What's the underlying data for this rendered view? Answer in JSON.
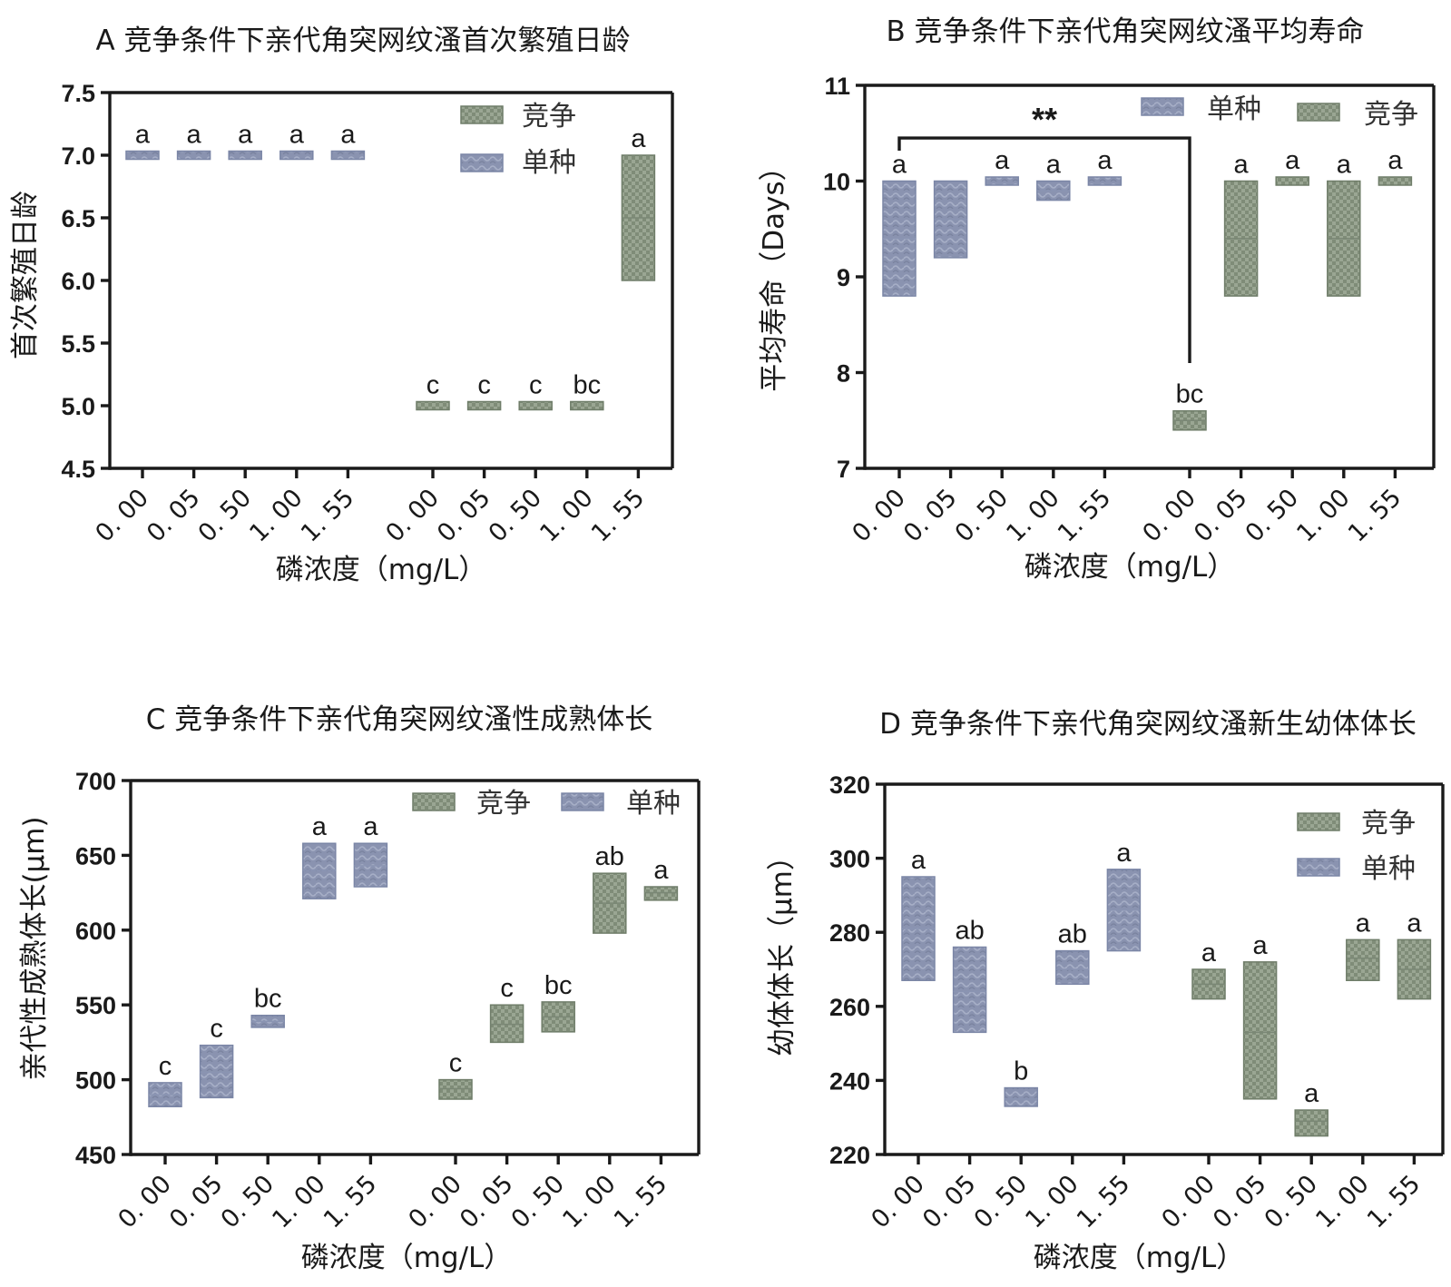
{
  "colors": {
    "competition": "#7f8c78",
    "competition_dark": "#65725f",
    "single": "#8a93b0",
    "single_dark": "#6e7896",
    "axis": "#1a1a1a"
  },
  "chart_data": [
    {
      "id": "A",
      "type": "floating-bar",
      "title": "A 竞争条件下亲代角突网纹溞首次繁殖日龄",
      "xlabel": "磷浓度（mg/L）",
      "ylabel": "首次繁殖日龄",
      "ylim": [
        4.5,
        7.5
      ],
      "yticks": [
        4.5,
        5.0,
        5.5,
        6.0,
        6.5,
        7.0,
        7.5
      ],
      "ytick_labels": [
        "4.5",
        "5.0",
        "5.5",
        "6.0",
        "6.5",
        "7.0",
        "7.5"
      ],
      "categories": [
        "0. 00",
        "0. 05",
        "0. 50",
        "1. 00",
        "1. 55",
        "0. 00",
        "0. 05",
        "0. 50",
        "1. 00",
        "1. 55"
      ],
      "legend": [
        {
          "series": "competition",
          "label": "竞争"
        },
        {
          "series": "single",
          "label": "单种"
        }
      ],
      "bars": [
        {
          "series": "single",
          "min": 7.0,
          "max": 7.0,
          "mean": 7.0,
          "letter": "a"
        },
        {
          "series": "single",
          "min": 7.0,
          "max": 7.0,
          "mean": 7.0,
          "letter": "a"
        },
        {
          "series": "single",
          "min": 7.0,
          "max": 7.0,
          "mean": 7.0,
          "letter": "a"
        },
        {
          "series": "single",
          "min": 7.0,
          "max": 7.0,
          "mean": 7.0,
          "letter": "a"
        },
        {
          "series": "single",
          "min": 7.0,
          "max": 7.0,
          "mean": 7.0,
          "letter": "a"
        },
        {
          "series": "competition",
          "min": 5.0,
          "max": 5.0,
          "mean": 5.0,
          "letter": "c"
        },
        {
          "series": "competition",
          "min": 5.0,
          "max": 5.0,
          "mean": 5.0,
          "letter": "c"
        },
        {
          "series": "competition",
          "min": 5.0,
          "max": 5.0,
          "mean": 5.0,
          "letter": "c"
        },
        {
          "series": "competition",
          "min": 5.0,
          "max": 5.0,
          "mean": 5.0,
          "letter": "bc"
        },
        {
          "series": "competition",
          "min": 6.0,
          "max": 7.0,
          "mean": 6.5,
          "letter": "a"
        }
      ]
    },
    {
      "id": "B",
      "type": "floating-bar",
      "title": "B 竞争条件下亲代角突网纹溞平均寿命",
      "xlabel": "磷浓度（mg/L）",
      "ylabel": "平均寿命（Days）",
      "ylim": [
        7,
        11
      ],
      "yticks": [
        7,
        8,
        9,
        10,
        11
      ],
      "ytick_labels": [
        "7",
        "8",
        "9",
        "10",
        "11"
      ],
      "categories": [
        "0. 00",
        "0. 05",
        "0. 50",
        "1. 00",
        "1. 55",
        "0. 00",
        "0. 05",
        "0. 50",
        "1. 00",
        "1. 55"
      ],
      "legend": [
        {
          "series": "single",
          "label": "单种"
        },
        {
          "series": "competition",
          "label": "竞争"
        }
      ],
      "bars": [
        {
          "series": "single",
          "min": 8.8,
          "max": 10.0,
          "mean": 9.4,
          "letter": "a"
        },
        {
          "series": "single",
          "min": 9.2,
          "max": 10.0,
          "mean": 9.6,
          "letter": ""
        },
        {
          "series": "single",
          "min": 10.0,
          "max": 10.0,
          "mean": 10.0,
          "letter": "a"
        },
        {
          "series": "single",
          "min": 9.8,
          "max": 10.0,
          "mean": 9.9,
          "letter": "a"
        },
        {
          "series": "single",
          "min": 10.0,
          "max": 10.0,
          "mean": 10.0,
          "letter": "a"
        },
        {
          "series": "competition",
          "min": 7.4,
          "max": 7.6,
          "mean": 7.5,
          "letter": "bc"
        },
        {
          "series": "competition",
          "min": 8.8,
          "max": 10.0,
          "mean": 9.4,
          "letter": "a"
        },
        {
          "series": "competition",
          "min": 10.0,
          "max": 10.0,
          "mean": 10.0,
          "letter": "a"
        },
        {
          "series": "competition",
          "min": 8.8,
          "max": 10.0,
          "mean": 9.4,
          "letter": "a"
        },
        {
          "series": "competition",
          "min": 10.0,
          "max": 10.0,
          "mean": 10.0,
          "letter": "a"
        }
      ],
      "significance": {
        "from_index": 0,
        "to_index": 5,
        "level": 10.45,
        "from_end": 10.0,
        "to_end": 8.1,
        "label": "**"
      }
    },
    {
      "id": "C",
      "type": "floating-bar",
      "title": "C 竞争条件下亲代角突网纹溞性成熟体长",
      "xlabel": "磷浓度（mg/L）",
      "ylabel": "亲代性成熟体长(μm)",
      "ylim": [
        450,
        700
      ],
      "yticks": [
        450,
        500,
        550,
        600,
        650,
        700
      ],
      "ytick_labels": [
        "450",
        "500",
        "550",
        "600",
        "650",
        "700"
      ],
      "categories": [
        "0. 00",
        "0. 05",
        "0. 50",
        "1. 00",
        "1. 55",
        "0. 00",
        "0. 05",
        "0. 50",
        "1. 00",
        "1. 55"
      ],
      "legend": [
        {
          "series": "competition",
          "label": "竞争"
        },
        {
          "series": "single",
          "label": "单种"
        }
      ],
      "bars": [
        {
          "series": "single",
          "min": 482,
          "max": 498,
          "mean": 490,
          "letter": "c"
        },
        {
          "series": "single",
          "min": 488,
          "max": 523,
          "mean": 505,
          "letter": "c"
        },
        {
          "series": "single",
          "min": 535,
          "max": 543,
          "mean": 539,
          "letter": "bc"
        },
        {
          "series": "single",
          "min": 621,
          "max": 658,
          "mean": 640,
          "letter": "a"
        },
        {
          "series": "single",
          "min": 629,
          "max": 658,
          "mean": 643,
          "letter": "a"
        },
        {
          "series": "competition",
          "min": 487,
          "max": 500,
          "mean": 494,
          "letter": "c"
        },
        {
          "series": "competition",
          "min": 525,
          "max": 550,
          "mean": 537,
          "letter": "c"
        },
        {
          "series": "competition",
          "min": 532,
          "max": 552,
          "mean": 542,
          "letter": "bc"
        },
        {
          "series": "competition",
          "min": 598,
          "max": 638,
          "mean": 618,
          "letter": "ab"
        },
        {
          "series": "competition",
          "min": 620,
          "max": 629,
          "mean": 625,
          "letter": "a"
        }
      ]
    },
    {
      "id": "D",
      "type": "floating-bar",
      "title": "D 竞争条件下亲代角突网纹溞新生幼体体长",
      "xlabel": "磷浓度（mg/L）",
      "ylabel": "幼体体长（μm）",
      "ylim": [
        220,
        320
      ],
      "yticks": [
        220,
        240,
        260,
        280,
        300,
        320
      ],
      "ytick_labels": [
        "220",
        "240",
        "260",
        "280",
        "300",
        "320"
      ],
      "categories": [
        "0. 00",
        "0. 05",
        "0. 50",
        "1. 00",
        "1. 55",
        "0. 00",
        "0. 05",
        "0. 50",
        "1. 00",
        "1. 55"
      ],
      "legend": [
        {
          "series": "competition",
          "label": "竞争"
        },
        {
          "series": "single",
          "label": "单种"
        }
      ],
      "bars": [
        {
          "series": "single",
          "min": 267,
          "max": 295,
          "mean": 281,
          "letter": "a"
        },
        {
          "series": "single",
          "min": 253,
          "max": 276,
          "mean": 264,
          "letter": "ab"
        },
        {
          "series": "single",
          "min": 233,
          "max": 238,
          "mean": 235,
          "letter": "b"
        },
        {
          "series": "single",
          "min": 266,
          "max": 275,
          "mean": 270,
          "letter": "ab"
        },
        {
          "series": "single",
          "min": 275,
          "max": 297,
          "mean": 286,
          "letter": "a"
        },
        {
          "series": "competition",
          "min": 262,
          "max": 270,
          "mean": 266,
          "letter": "a"
        },
        {
          "series": "competition",
          "min": 235,
          "max": 272,
          "mean": 253,
          "letter": "a"
        },
        {
          "series": "competition",
          "min": 225,
          "max": 232,
          "mean": 229,
          "letter": "a"
        },
        {
          "series": "competition",
          "min": 267,
          "max": 278,
          "mean": 273,
          "letter": "a"
        },
        {
          "series": "competition",
          "min": 262,
          "max": 278,
          "mean": 270,
          "letter": "a"
        }
      ]
    }
  ]
}
